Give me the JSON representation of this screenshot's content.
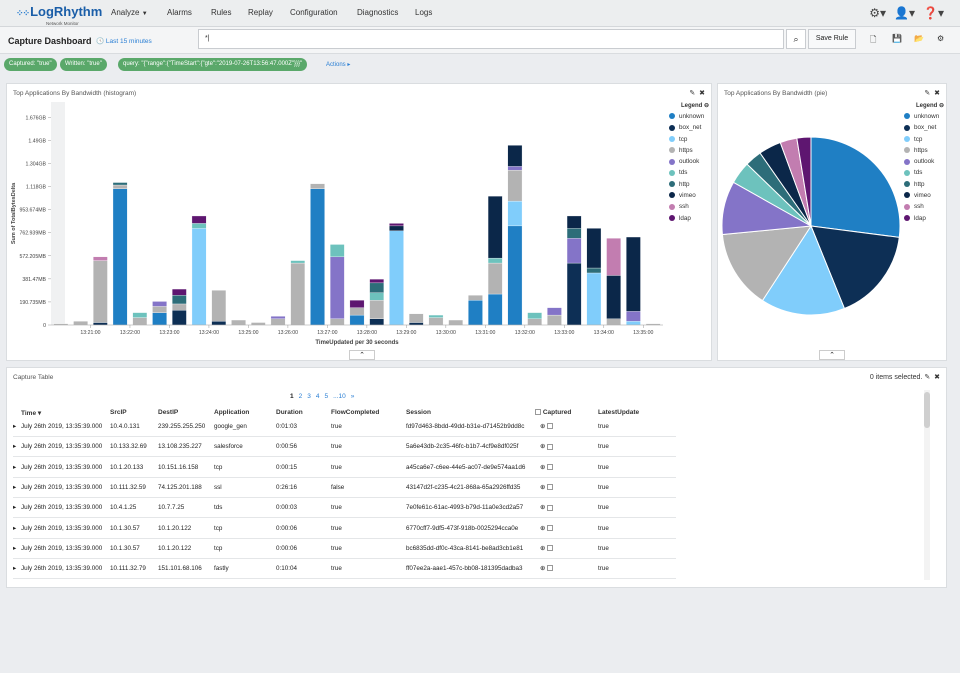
{
  "app": {
    "logo": "LogRhythm",
    "logo_sub": "Network Monitor"
  },
  "nav": {
    "items": [
      "Analyze",
      "Alarms",
      "Rules",
      "Replay",
      "Configuration",
      "Diagnostics",
      "Logs"
    ]
  },
  "header": {
    "title": "Capture Dashboard",
    "time_range": "Last 15 minutes",
    "search_value": "*|",
    "save_rule": "Save Rule"
  },
  "filters": {
    "pills": [
      "Captured: \"true\"",
      "Written: \"true\"",
      "query: \"{\"range\":{\"TimeStart\":{\"gte\":\"2019-07-26T13:56:47.000Z\"}}}\""
    ],
    "actions": "Actions"
  },
  "colors": {
    "unknown": "#1f7fc4",
    "box_net": "#0d2f55",
    "tcp": "#80cdfb",
    "https": "#b3b3b3",
    "outlook": "#8474c8",
    "tds": "#6dc2bd",
    "http": "#2d6d79",
    "vimeo": "#0b2749",
    "ssh": "#c27db0",
    "ldap": "#5e1670"
  },
  "histogram": {
    "title": "Top Applications By Bandwidth (histogram)",
    "legend_title": "Legend",
    "legend": [
      "unknown",
      "box_net",
      "tcp",
      "https",
      "outlook",
      "tds",
      "http",
      "vimeo",
      "ssh",
      "ldap"
    ],
    "ylabel": "Sum of TotalBytesDelta",
    "xlabel": "TimeUpdated per 30 seconds",
    "yticks": [
      "0",
      "190.735MB",
      "381.47MB",
      "572.205MB",
      "762.939MB",
      "953.674MB",
      "1.118GB",
      "1.304GB",
      "1.49GB",
      "1.676GB"
    ],
    "xticks": [
      "13:21:00",
      "13:22:00",
      "13:23:00",
      "13:24:00",
      "13:25:00",
      "13:26:00",
      "13:27:00",
      "13:28:00",
      "13:29:00",
      "13:30:00",
      "13:31:00",
      "13:32:00",
      "13:33:00",
      "13:34:00",
      "13:35:00"
    ]
  },
  "pie": {
    "title": "Top Applications By Bandwidth (pie)",
    "legend_title": "Legend",
    "legend": [
      "unknown",
      "box_net",
      "tcp",
      "https",
      "outlook",
      "tds",
      "http",
      "vimeo",
      "ssh",
      "ldap"
    ]
  },
  "chart_data": [
    {
      "type": "bar",
      "title": "Top Applications By Bandwidth (histogram)",
      "xlabel": "TimeUpdated per 30 seconds",
      "ylabel": "Sum of TotalBytesDelta",
      "ylim_gb": [
        0,
        1.8
      ],
      "series_order": [
        "unknown",
        "box_net",
        "tcp",
        "https",
        "outlook",
        "tds",
        "http",
        "vimeo",
        "ssh",
        "ldap"
      ],
      "bars": [
        {
          "https": 0.01
        },
        {
          "https": 0.03
        },
        {
          "https": 0.5,
          "ssh": 0.03,
          "box_net": 0.02
        },
        {
          "unknown": 1.1,
          "https": 0.03,
          "http": 0.02
        },
        {
          "https": 0.06,
          "tds": 0.04
        },
        {
          "unknown": 0.1,
          "https": 0.05,
          "outlook": 0.04
        },
        {
          "https": 0.05,
          "box_net": 0.12,
          "http": 0.07,
          "ldap": 0.05
        },
        {
          "tcp": 0.78,
          "tds": 0.04,
          "ldap": 0.06
        },
        {
          "https": 0.25,
          "box_net": 0.03
        },
        {
          "https": 0.04
        },
        {
          "https": 0.02
        },
        {
          "https": 0.05,
          "outlook": 0.02
        },
        {
          "https": 0.5,
          "tds": 0.02
        },
        {
          "unknown": 1.1,
          "https": 0.04
        },
        {
          "https": 0.05,
          "outlook": 0.5,
          "tds": 0.1
        },
        {
          "unknown": 0.08,
          "https": 0.06,
          "ldap": 0.06
        },
        {
          "https": 0.15,
          "tds": 0.06,
          "http": 0.08,
          "box_net": 0.05,
          "ldap": 0.03
        },
        {
          "vimeo": 0.04,
          "tcp": 0.76,
          "ldap": 0.02
        },
        {
          "https": 0.07,
          "box_net": 0.02
        },
        {
          "https": 0.06,
          "tds": 0.02
        },
        {
          "https": 0.04
        },
        {
          "unknown": 0.2,
          "https": 0.04
        },
        {
          "unknown": 0.25,
          "vimeo": 0.5,
          "https": 0.25,
          "tds": 0.04
        },
        {
          "unknown": 0.8,
          "vimeo": 0.17,
          "https": 0.25,
          "tcp": 0.2,
          "outlook": 0.03
        },
        {
          "https": 0.05,
          "tds": 0.05
        },
        {
          "https": 0.08,
          "outlook": 0.06
        },
        {
          "box_net": 0.5,
          "outlook": 0.2,
          "http": 0.08,
          "vimeo": 0.1
        },
        {
          "vimeo": 0.32,
          "tcp": 0.42,
          "http": 0.04
        },
        {
          "vimeo": 0.35,
          "https": 0.05,
          "ssh": 0.3
        },
        {
          "vimeo": 0.6,
          "tcp": 0.03,
          "outlook": 0.08
        },
        {
          "https": 0.01
        }
      ]
    },
    {
      "type": "pie",
      "title": "Top Applications By Bandwidth (pie)",
      "categories": [
        "unknown",
        "box_net",
        "tcp",
        "https",
        "outlook",
        "tds",
        "http",
        "vimeo",
        "ssh",
        "ldap"
      ],
      "values": [
        0.265,
        0.165,
        0.15,
        0.14,
        0.095,
        0.04,
        0.03,
        0.04,
        0.03,
        0.025
      ]
    }
  ],
  "table": {
    "title": "Capture Table",
    "selected": "0 items selected.",
    "pager": [
      "1",
      "2",
      "3",
      "4",
      "5",
      "...10",
      "»"
    ],
    "headers": [
      "Time",
      "SrcIP",
      "DestIP",
      "Application",
      "Duration",
      "FlowCompleted",
      "Session",
      "Captured",
      "LatestUpdate"
    ],
    "rows": [
      [
        "July 26th 2019, 13:35:39.000",
        "10.4.0.131",
        "239.255.255.250",
        "google_gen",
        "0:01:03",
        "true",
        "fd97d463-8bdd-49dd-b31e-d71452b9dd8c",
        "true"
      ],
      [
        "July 26th 2019, 13:35:39.000",
        "10.133.32.69",
        "13.108.235.227",
        "salesforce",
        "0:00:56",
        "true",
        "5a6e43db-2c35-46fc-b1b7-4cf9e8df025f",
        "true"
      ],
      [
        "July 26th 2019, 13:35:39.000",
        "10.1.20.133",
        "10.151.16.158",
        "tcp",
        "0:00:15",
        "true",
        "a45ca6e7-c6ee-44e5-ac07-de9e574aa1d6",
        "true"
      ],
      [
        "July 26th 2019, 13:35:39.000",
        "10.111.32.59",
        "74.125.201.188",
        "ssl",
        "0:26:16",
        "false",
        "43147d2f-c235-4c21-868a-65a2926ffd35",
        "true"
      ],
      [
        "July 26th 2019, 13:35:39.000",
        "10.4.1.25",
        "10.7.7.25",
        "tds",
        "0:00:03",
        "true",
        "7e0fe61c-61ac-4993-b79d-11a0e3cd2a57",
        "true"
      ],
      [
        "July 26th 2019, 13:35:39.000",
        "10.1.30.57",
        "10.1.20.122",
        "tcp",
        "0:00:06",
        "true",
        "6770cff7-9df5-473f-918b-0025294cca0e",
        "true"
      ],
      [
        "July 26th 2019, 13:35:39.000",
        "10.1.30.57",
        "10.1.20.122",
        "tcp",
        "0:00:06",
        "true",
        "bc6835dd-df0c-43ca-8141-be8ad3cb1e81",
        "true"
      ],
      [
        "July 26th 2019, 13:35:39.000",
        "10.111.32.79",
        "151.101.68.106",
        "fastly",
        "0:10:04",
        "true",
        "ff07ee2a-aae1-457c-bb08-181395dadba3",
        "true"
      ]
    ]
  }
}
